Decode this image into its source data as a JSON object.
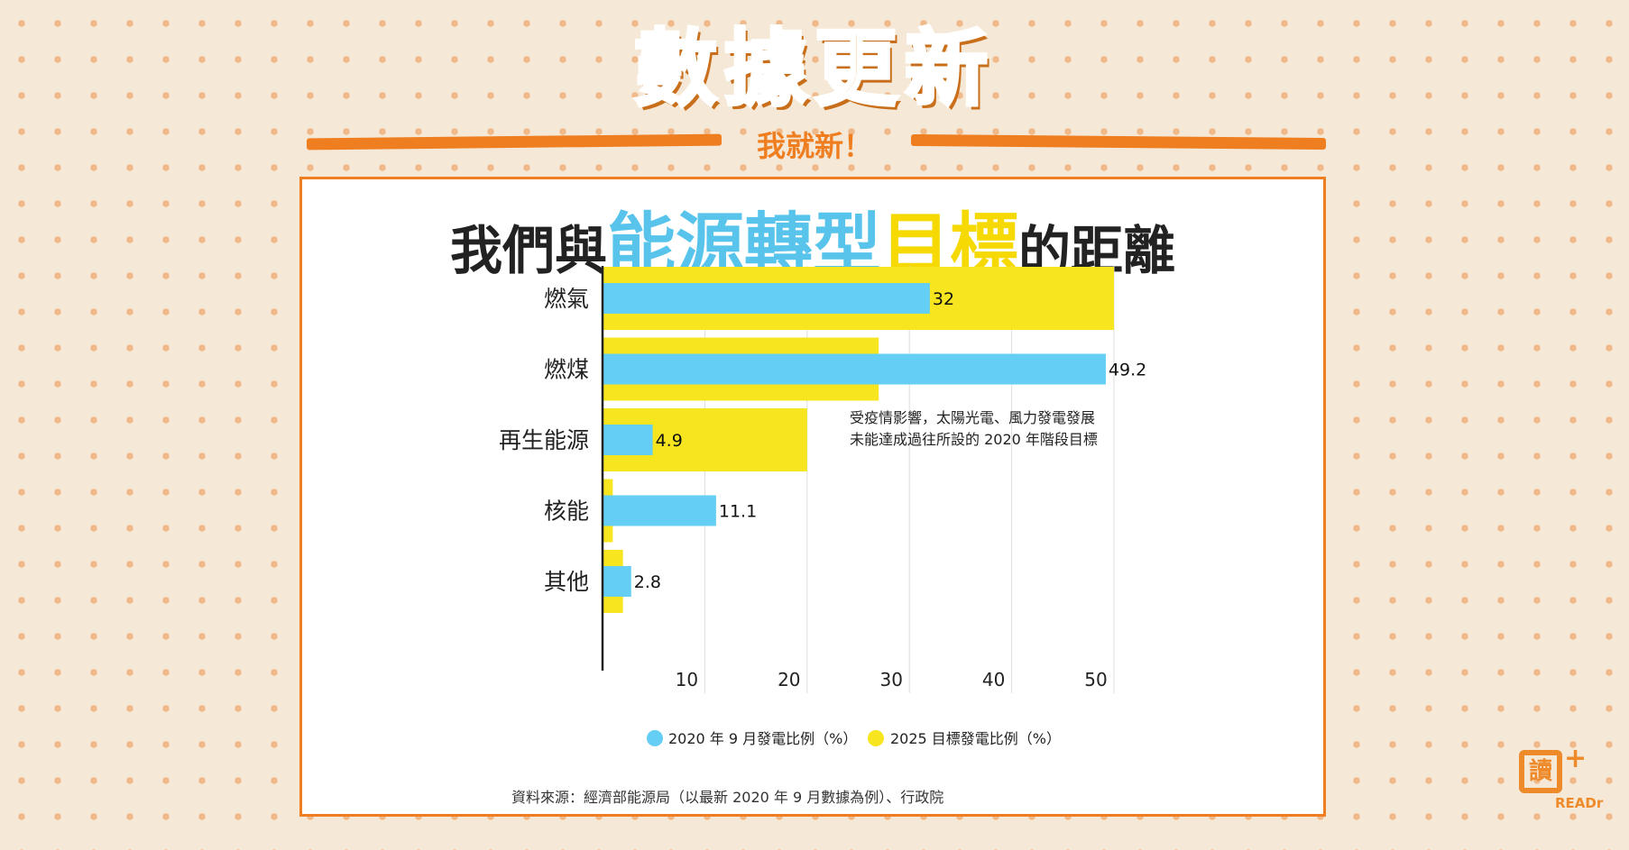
{
  "header": {
    "title": "數據更新",
    "subtitle": "我就新！"
  },
  "card": {
    "title_parts": [
      "我們與",
      "能源轉型",
      "目標",
      "的距離"
    ],
    "source": "資料來源：經濟部能源局（以最新 2020 年 9 月數據為例）、行政院"
  },
  "logo": {
    "mark": "讀",
    "plus": "+",
    "text": "READr"
  },
  "colors": {
    "series_2020": "#64cef5",
    "series_2025": "#f6e51f",
    "accent": "#ee7e20"
  },
  "chart_data": {
    "type": "bar",
    "orientation": "horizontal",
    "categories": [
      "燃氣",
      "燃煤",
      "再生能源",
      "核能",
      "其他"
    ],
    "series": [
      {
        "name": "2020 年 9 月發電比例（%）",
        "values": [
          32,
          49.2,
          4.9,
          11.1,
          2.8
        ],
        "labels": [
          "32",
          "49.2",
          "4.9",
          "11.1",
          "2.8"
        ]
      },
      {
        "name": "2025 目標發電比例（%）",
        "values": [
          50,
          27,
          20,
          1,
          2
        ]
      }
    ],
    "xticks": [
      "10",
      "20",
      "30",
      "40",
      "50"
    ],
    "xlim": [
      0,
      50
    ],
    "grid": true,
    "legend": "bottom",
    "annotation": [
      "受疫情影響，太陽光電、風力發電發展",
      "未能達成過往所設的 2020 年階段目標"
    ]
  }
}
